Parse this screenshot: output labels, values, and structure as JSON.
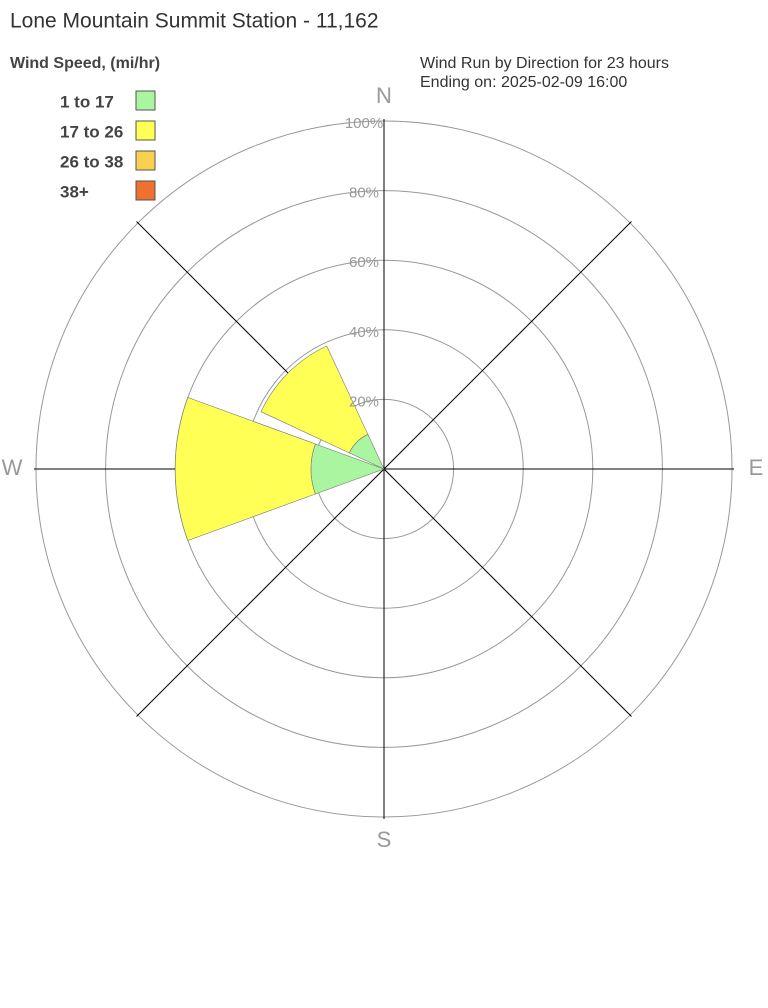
{
  "chart_data": {
    "type": "windrose",
    "title": "Lone Mountain Summit Station - 11,162",
    "subtitle": [
      "Wind Run by Direction for 23 hours",
      "Ending on: 2025-02-09 16:00"
    ],
    "legend_title": "Wind Speed, (mi/hr)",
    "categories": [
      "N",
      null,
      "E",
      null,
      "S",
      null,
      "W",
      null
    ],
    "series": [
      {
        "name": "1 to 17",
        "color": "#aaf5a0",
        "values": [
          0,
          0,
          0,
          0,
          0,
          0,
          21,
          11
        ]
      },
      {
        "name": "17 to 26",
        "color": "#ffff55",
        "values": [
          0,
          0,
          0,
          0,
          0,
          0,
          39,
          28
        ]
      },
      {
        "name": "26 to 38",
        "color": "#fad050",
        "values": [
          0,
          0,
          0,
          0,
          0,
          0,
          0,
          0
        ]
      },
      {
        "name": "38+",
        "color": "#f07030",
        "values": [
          0,
          0,
          0,
          0,
          0,
          0,
          0,
          0
        ]
      }
    ],
    "rlim": [
      0,
      100
    ],
    "rticks": [
      {
        "value": 20,
        "label": "20%"
      },
      {
        "value": 40,
        "label": "40%"
      },
      {
        "value": 60,
        "label": "60%"
      },
      {
        "value": 80,
        "label": "80%"
      },
      {
        "value": 100,
        "label": "100%"
      }
    ],
    "grid": true
  }
}
